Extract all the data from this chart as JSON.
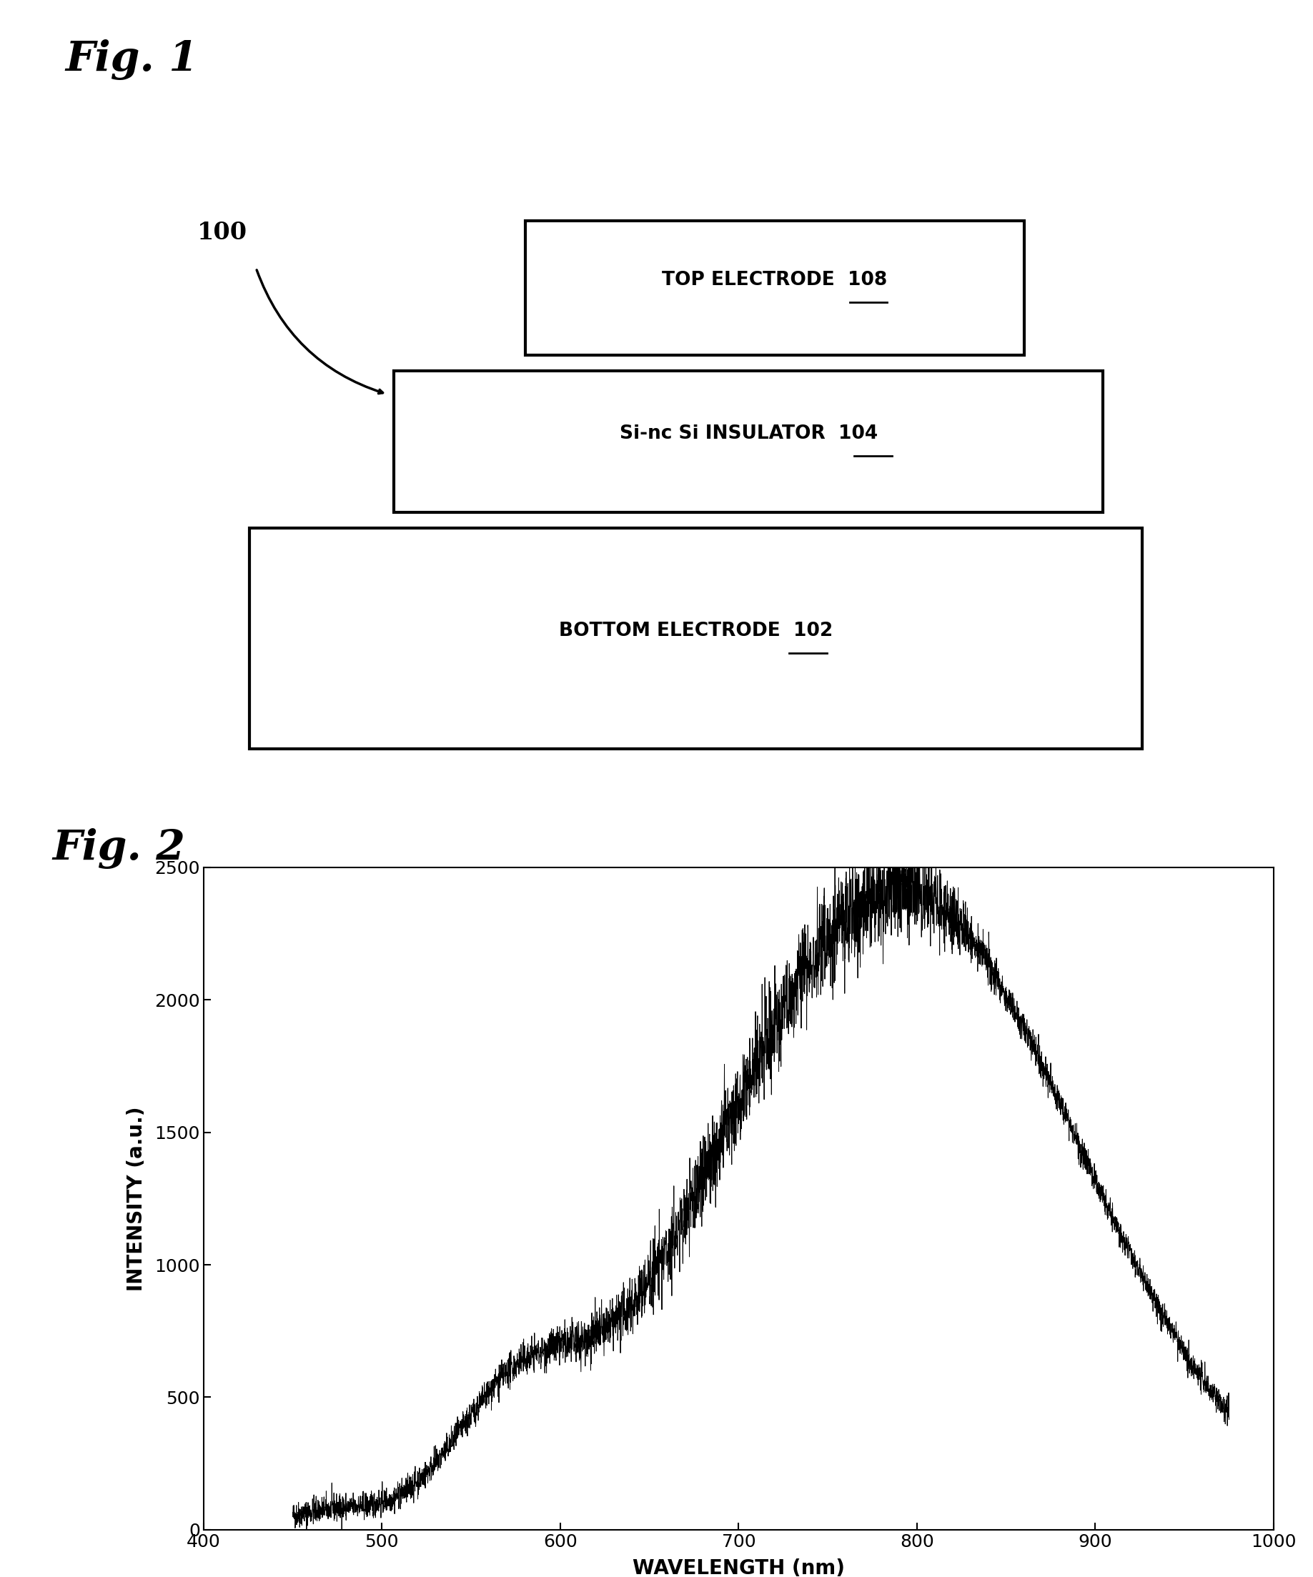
{
  "fig1_label": "Fig. 1",
  "fig2_label": "Fig. 2",
  "device_label": "100",
  "plot_xlabel": "WAVELENGTH (nm)",
  "plot_ylabel": "INTENSITY (a.u.)",
  "plot_xlim": [
    400,
    1000
  ],
  "plot_ylim": [
    0,
    2500
  ],
  "plot_xticks": [
    400,
    500,
    600,
    700,
    800,
    900,
    1000
  ],
  "plot_yticks": [
    0,
    500,
    1000,
    1500,
    2000,
    2500
  ],
  "line_color": "#000000",
  "background_color": "#ffffff",
  "fig1_fontsize": 42,
  "fig2_fontsize": 42,
  "layer_fontsize": 19,
  "axis_label_fontsize": 20,
  "tick_fontsize": 18,
  "layer_data": [
    [
      0.19,
      0.05,
      0.68,
      0.28
    ],
    [
      0.3,
      0.35,
      0.54,
      0.18
    ],
    [
      0.4,
      0.55,
      0.38,
      0.17
    ]
  ],
  "layer_labels": [
    "BOTTOM ELECTRODE",
    "Si-nc Si INSULATOR",
    "TOP ELECTRODE"
  ],
  "layer_refs": [
    "102",
    "104",
    "108"
  ]
}
